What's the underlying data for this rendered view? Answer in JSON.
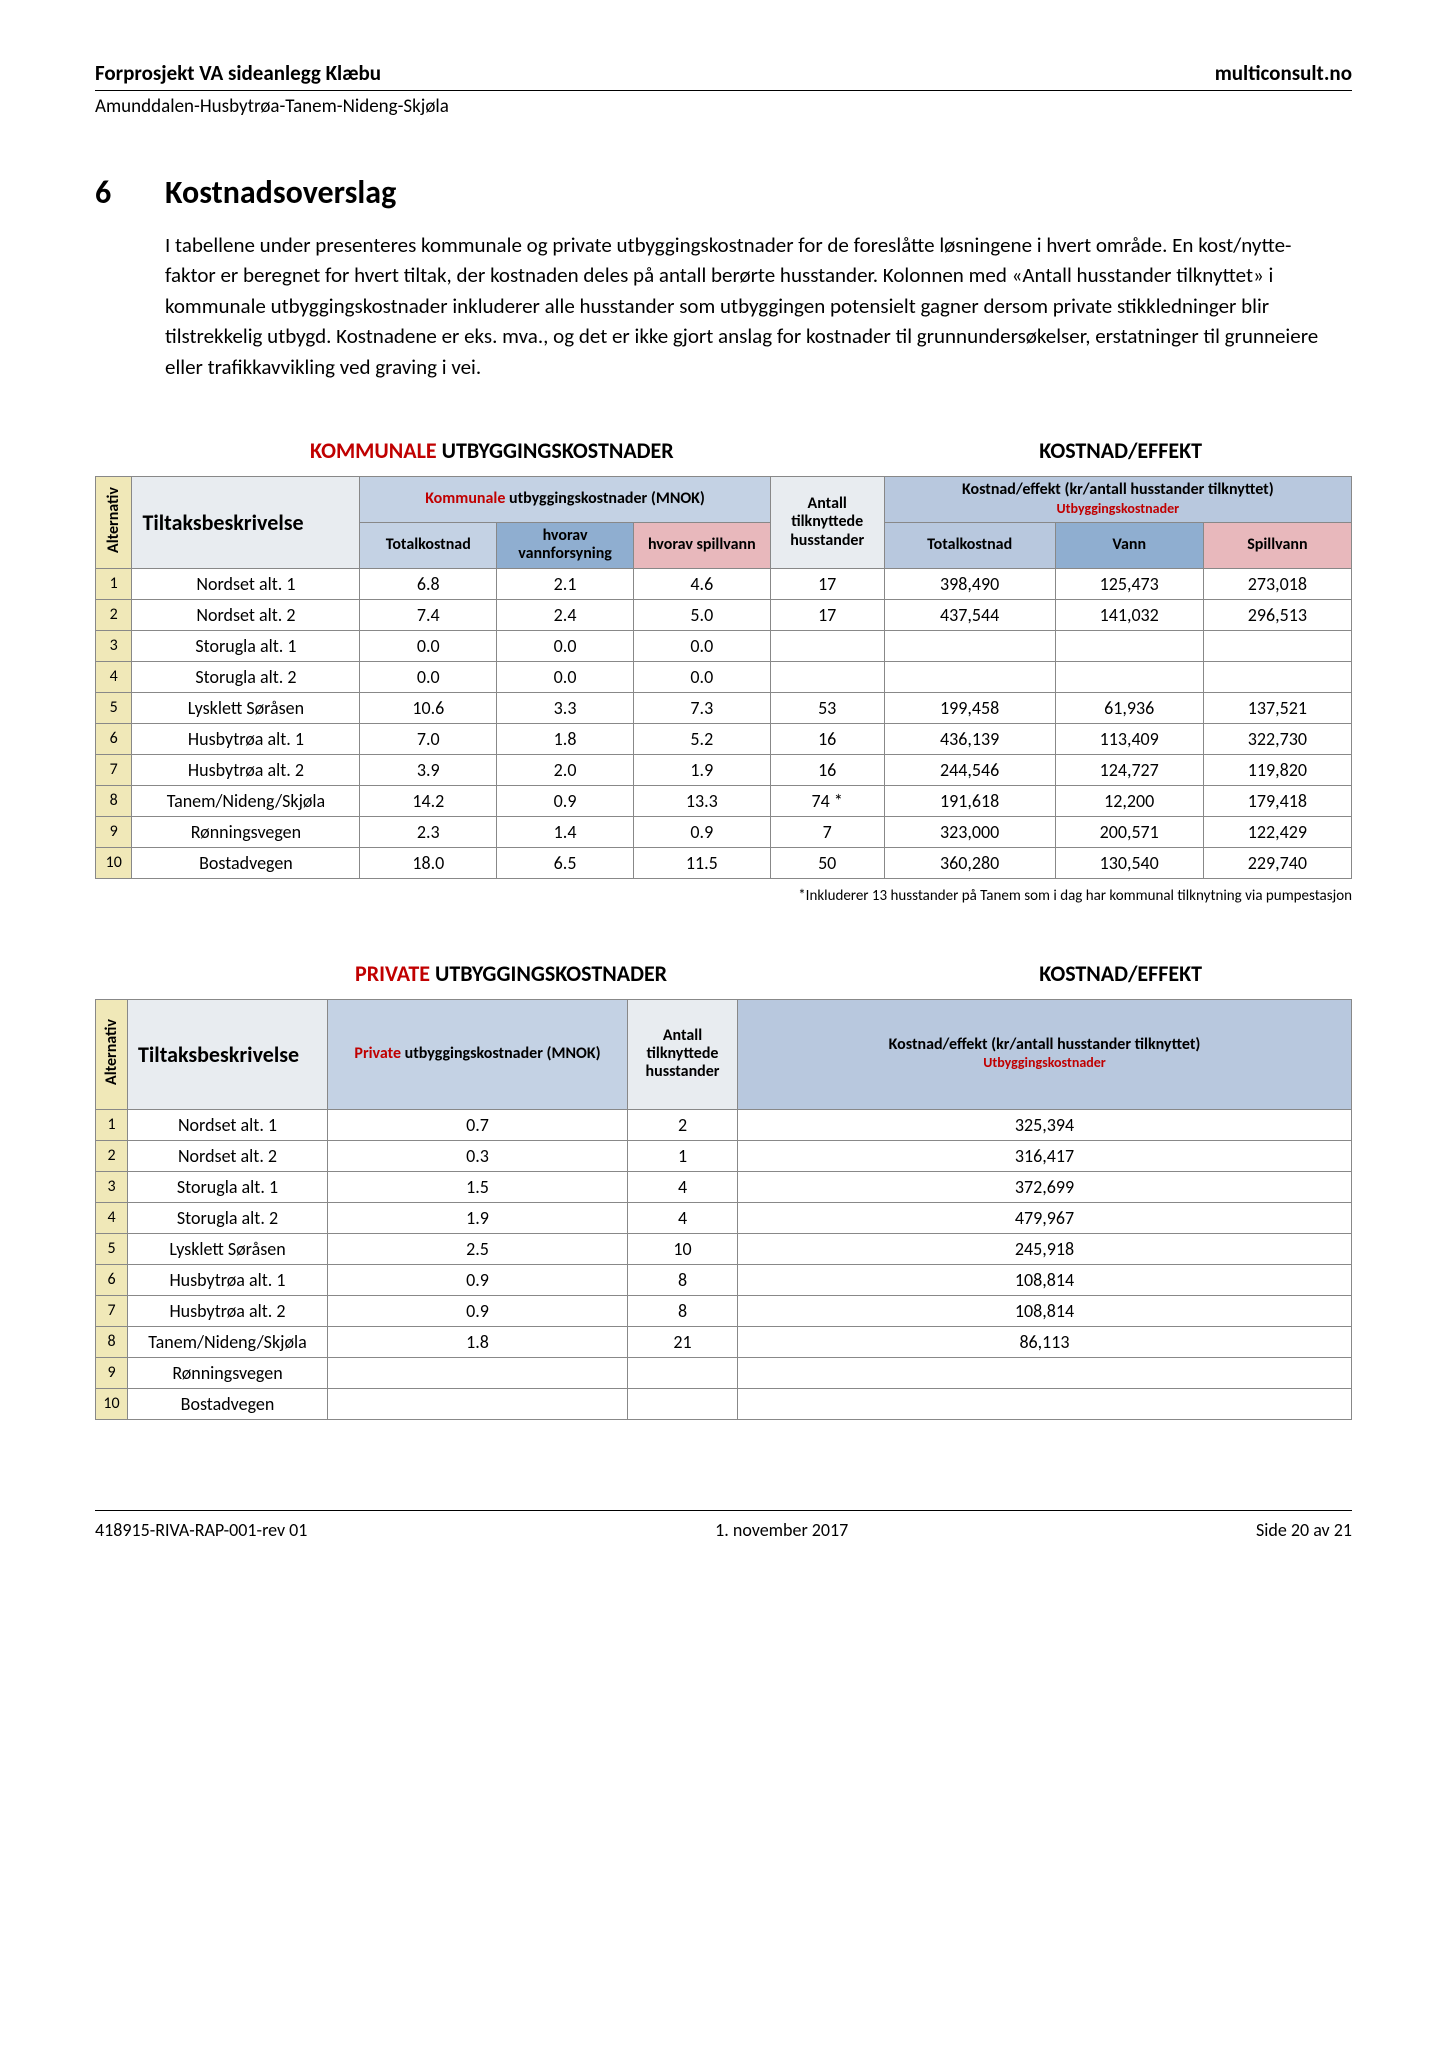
{
  "header": {
    "left": "Forprosjekt VA sideanlegg Klæbu",
    "right": "multiconsult.no",
    "sub": "Amunddalen-Husbytrøa-Tanem-Nideng-Skjøla"
  },
  "section": {
    "num": "6",
    "title": "Kostnadsoverslag",
    "para": "I tabellene under presenteres kommunale og private utbyggingskostnader for de foreslåtte løsningene i hvert område. En kost/nytte-faktor er beregnet for hvert tiltak, der kostnaden deles på antall berørte husstander. Kolonnen med «Antall husstander tilknyttet» i kommunale utbyggingskostnader inkluderer alle husstander som utbyggingen potensielt gagner dersom private stikkledninger blir tilstrekkelig utbygd. Kostnadene er eks. mva., og det er ikke gjort anslag for kostnader til grunnundersøkelser, erstatninger til grunneiere eller trafikkavvikling ved graving i vei."
  },
  "table1": {
    "heading_left_red": "KOMMUNALE",
    "heading_left_rest": " UTBYGGINGSKOSTNADER",
    "heading_right": "KOSTNAD/EFFEKT",
    "col_alt": "Alternativ",
    "col_desc": "Tiltaksbeskrivelse",
    "col_komm_top_red": "Kommunale",
    "col_komm_top_rest": " utbyggingskostnader (MNOK)",
    "col_total": "Totalkostnad",
    "col_vannf": "hvorav vannforsyning",
    "col_spill": "hvorav spillvann",
    "col_antall": "Antall tilknyttede husstander",
    "col_eff_top": "Kostnad/effekt (kr/antall husstander tilknyttet)",
    "col_eff_sub": "Utbyggingskostnader",
    "col_eff_total": "Totalkostnad",
    "col_eff_vann": "Vann",
    "col_eff_spill": "Spillvann",
    "rows": [
      {
        "n": "1",
        "desc": "Nordset alt. 1",
        "tk": "6.8",
        "vf": "2.1",
        "sp": "4.6",
        "ant": "17",
        "et": "398,490",
        "ev": "125,473",
        "es": "273,018"
      },
      {
        "n": "2",
        "desc": "Nordset alt. 2",
        "tk": "7.4",
        "vf": "2.4",
        "sp": "5.0",
        "ant": "17",
        "et": "437,544",
        "ev": "141,032",
        "es": "296,513"
      },
      {
        "n": "3",
        "desc": "Storugla alt. 1",
        "tk": "0.0",
        "vf": "0.0",
        "sp": "0.0",
        "ant": "",
        "et": "",
        "ev": "",
        "es": ""
      },
      {
        "n": "4",
        "desc": "Storugla alt. 2",
        "tk": "0.0",
        "vf": "0.0",
        "sp": "0.0",
        "ant": "",
        "et": "",
        "ev": "",
        "es": ""
      },
      {
        "n": "5",
        "desc": "Lysklett Søråsen",
        "tk": "10.6",
        "vf": "3.3",
        "sp": "7.3",
        "ant": "53",
        "et": "199,458",
        "ev": "61,936",
        "es": "137,521"
      },
      {
        "n": "6",
        "desc": "Husbytrøa alt. 1",
        "tk": "7.0",
        "vf": "1.8",
        "sp": "5.2",
        "ant": "16",
        "et": "436,139",
        "ev": "113,409",
        "es": "322,730"
      },
      {
        "n": "7",
        "desc": "Husbytrøa alt. 2",
        "tk": "3.9",
        "vf": "2.0",
        "sp": "1.9",
        "ant": "16",
        "et": "244,546",
        "ev": "124,727",
        "es": "119,820"
      },
      {
        "n": "8",
        "desc": "Tanem/Nideng/Skjøla",
        "tk": "14.2",
        "vf": "0.9",
        "sp": "13.3",
        "ant": "74 *",
        "et": "191,618",
        "ev": "12,200",
        "es": "179,418"
      },
      {
        "n": "9",
        "desc": "Rønningsvegen",
        "tk": "2.3",
        "vf": "1.4",
        "sp": "0.9",
        "ant": "7",
        "et": "323,000",
        "ev": "200,571",
        "es": "122,429"
      },
      {
        "n": "10",
        "desc": "Bostadvegen",
        "tk": "18.0",
        "vf": "6.5",
        "sp": "11.5",
        "ant": "50",
        "et": "360,280",
        "ev": "130,540",
        "es": "229,740"
      }
    ],
    "footnote": "*Inkluderer 13 husstander på Tanem som i dag har kommunal tilknytning via pumpestasjon"
  },
  "table2": {
    "heading_left_red": "PRIVATE",
    "heading_left_rest": " UTBYGGINGSKOSTNADER",
    "heading_right": "KOSTNAD/EFFEKT",
    "col_alt": "Alternativ",
    "col_desc": "Tiltaksbeskrivelse",
    "col_priv_top_red": "Private",
    "col_priv_top_rest": " utbyggingskostnader (MNOK)",
    "col_antall": "Antall tilknyttede husstander",
    "col_eff_top": "Kostnad/effekt (kr/antall husstander tilknyttet)",
    "col_eff_sub": "Utbyggingskostnader",
    "rows": [
      {
        "n": "1",
        "desc": "Nordset alt. 1",
        "pk": "0.7",
        "ant": "2",
        "ef": "325,394"
      },
      {
        "n": "2",
        "desc": "Nordset alt. 2",
        "pk": "0.3",
        "ant": "1",
        "ef": "316,417"
      },
      {
        "n": "3",
        "desc": "Storugla alt. 1",
        "pk": "1.5",
        "ant": "4",
        "ef": "372,699"
      },
      {
        "n": "4",
        "desc": "Storugla alt. 2",
        "pk": "1.9",
        "ant": "4",
        "ef": "479,967"
      },
      {
        "n": "5",
        "desc": "Lysklett Søråsen",
        "pk": "2.5",
        "ant": "10",
        "ef": "245,918"
      },
      {
        "n": "6",
        "desc": "Husbytrøa alt. 1",
        "pk": "0.9",
        "ant": "8",
        "ef": "108,814"
      },
      {
        "n": "7",
        "desc": "Husbytrøa alt. 2",
        "pk": "0.9",
        "ant": "8",
        "ef": "108,814"
      },
      {
        "n": "8",
        "desc": "Tanem/Nideng/Skjøla",
        "pk": "1.8",
        "ant": "21",
        "ef": "86,113"
      },
      {
        "n": "9",
        "desc": "Rønningsvegen",
        "pk": "",
        "ant": "",
        "ef": ""
      },
      {
        "n": "10",
        "desc": "Bostadvegen",
        "pk": "",
        "ant": "",
        "ef": ""
      }
    ]
  },
  "footer": {
    "left": "418915-RIVA-RAP-001-rev 01",
    "center": "1. november 2017",
    "right": "Side 20 av 21"
  }
}
